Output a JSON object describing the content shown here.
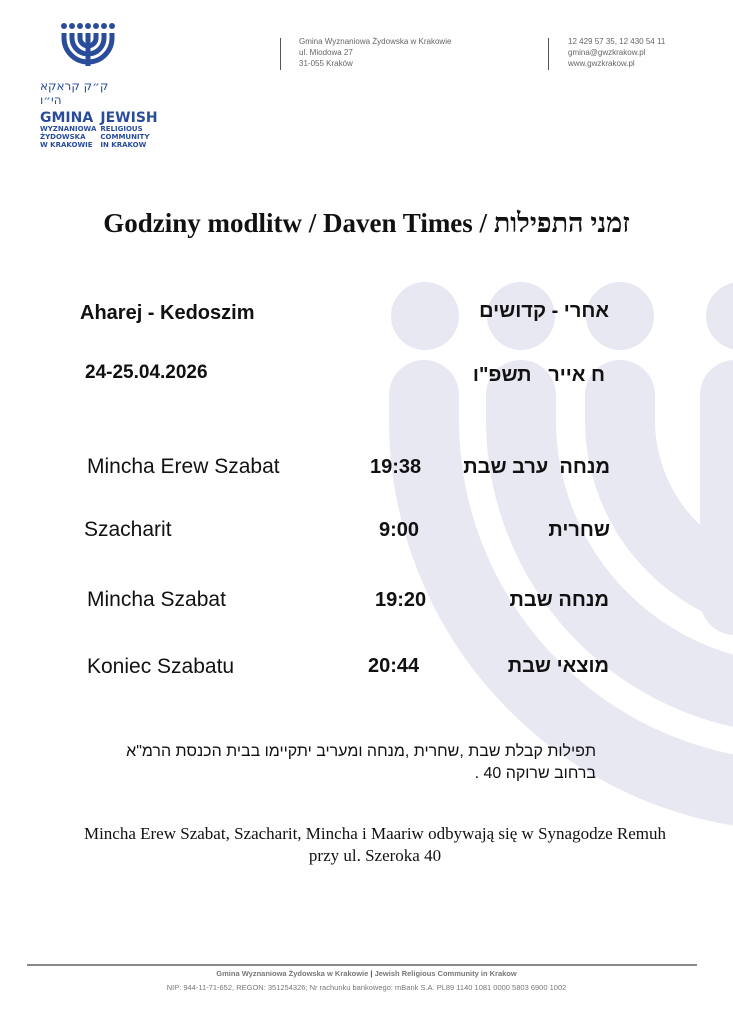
{
  "colors": {
    "brand": "#2a4d9b",
    "watermark": "#e8e8f3"
  },
  "logo": {
    "icon": "menorah-icon",
    "hebrew": "ק״ק קראקא הי״ו",
    "pl_lines": [
      "GMINA",
      "WYZNANIOWA",
      "ŻYDOWSKA",
      "W KRAKOWIE"
    ],
    "en_lines": [
      "JEWISH",
      "RELIGIOUS",
      "COMMUNITY",
      "IN KRAKOW"
    ]
  },
  "header": {
    "address": [
      "Gmina Wyznaniowa Żydowska w Krakowie",
      "ul. Miodowa 27",
      "31-055 Kraków"
    ],
    "contact": [
      "12 429 57 35, 12 430 54 11",
      "gmina@gwzkrakow.pl",
      "www.gwzkrakow.pl"
    ]
  },
  "title": "Godziny modlitw / Daven Times / זמני התפילות",
  "parasha": {
    "pl": "Aharej - Kedoszim",
    "he": "אחרי - קדושים"
  },
  "date": {
    "gregorian": "24-25.04.2026",
    "hebrew": "ח אייר   תשפ\"ו"
  },
  "schedule": [
    {
      "pl": "Mincha Erew Szabat",
      "time": "19:38",
      "he": "מנחה  ערב שבת"
    },
    {
      "pl": "Szacharit",
      "time": "9:00",
      "he": "שחרית"
    },
    {
      "pl": "Mincha Szabat",
      "time": "19:20",
      "he": "מנחה שבת"
    },
    {
      "pl": "Koniec Szabatu",
      "time": "20:44",
      "he": "מוצאי שבת"
    }
  ],
  "note_he": [
    "תפילות קבלת שבת ,שחרית ,מנחה ומעריב יתקיימו בבית הכנסת הרמ\"א",
    "ברחוב שרוקה 40 ."
  ],
  "note_pl": [
    "Mincha Erew Szabat, Szacharit, Mincha i Maariw odbywają się w Synagodze Remuh",
    "przy ul. Szeroka 40"
  ],
  "footer": {
    "line1_a": "Gmina Wyznaniowa Żydowska w Krakowie",
    "line1_sep": "|",
    "line1_b": "Jewish Religious Community in Krakow",
    "line2": "NIP: 944-11-71-652, REGON: 351254326; Nr rachunku bankowego: mBank S.A. PL89 1140 1081 0000 5803 6900 1002"
  }
}
